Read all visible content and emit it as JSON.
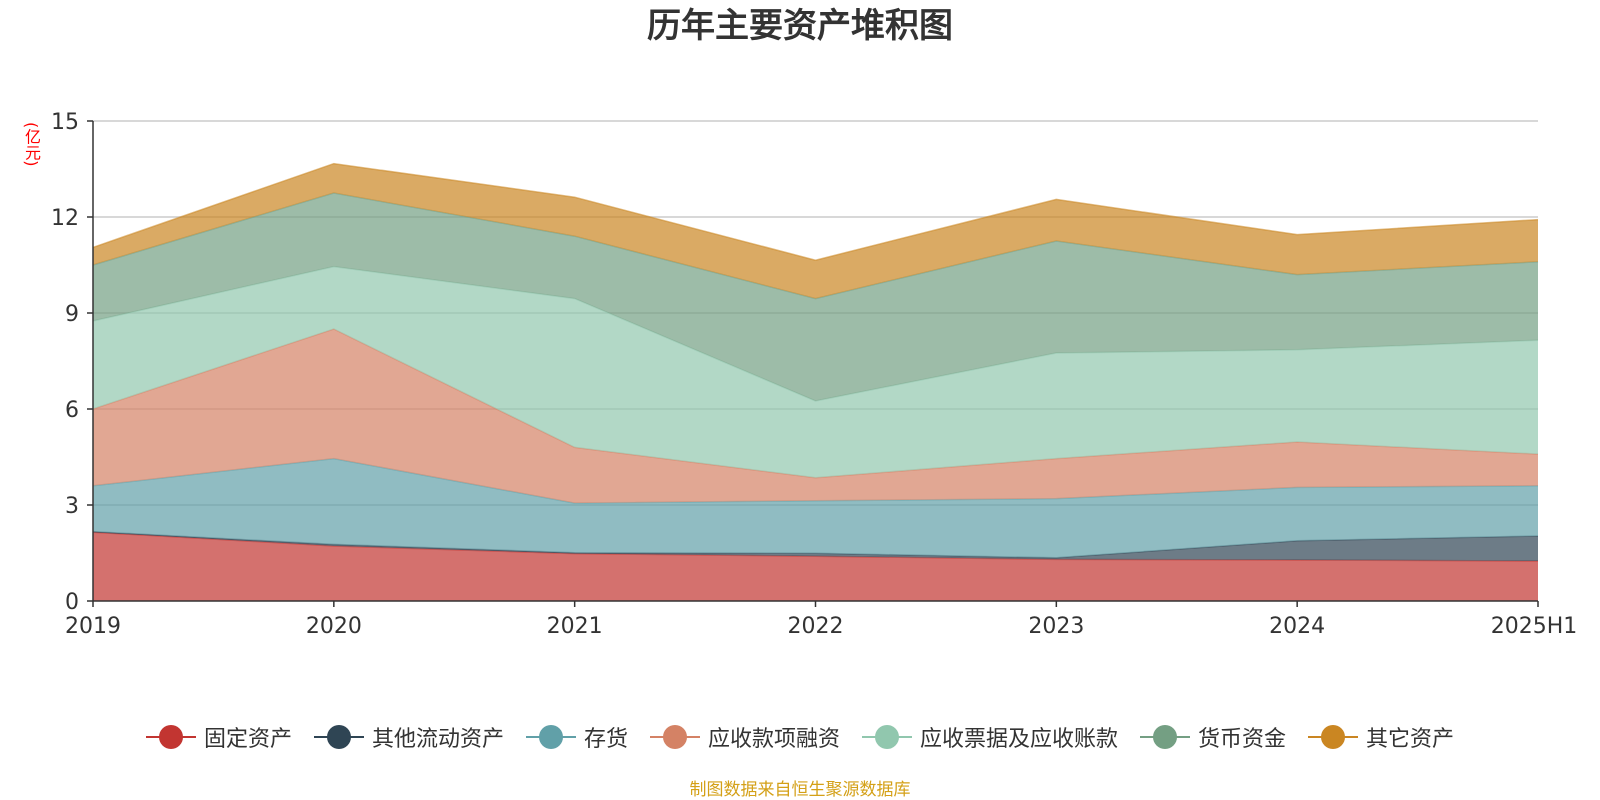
{
  "title": "历年主要资产堆积图",
  "unit_label": "(亿元)",
  "source_note": "制图数据来自恒生聚源数据库",
  "chart_data": {
    "type": "area",
    "stacked": true,
    "title": "历年主要资产堆积图",
    "ylabel": "(亿元)",
    "categories": [
      "2019",
      "2020",
      "2021",
      "2022",
      "2023",
      "2024",
      "2025H1"
    ],
    "ylim": [
      0,
      15
    ],
    "yticks": [
      "0",
      "3",
      "6",
      "9",
      "12",
      "15"
    ],
    "grid": true,
    "legend_position": "bottom",
    "series": [
      {
        "name": "固定资产",
        "color": "#c23531",
        "values": [
          2.15,
          1.72,
          1.48,
          1.4,
          1.3,
          1.28,
          1.25
        ]
      },
      {
        "name": "其他流动资产",
        "color": "#2f4554",
        "values": [
          0.02,
          0.05,
          0.03,
          0.09,
          0.05,
          0.6,
          0.78
        ]
      },
      {
        "name": "存货",
        "color": "#61a0a8",
        "values": [
          1.43,
          2.68,
          1.55,
          1.64,
          1.85,
          1.67,
          1.57
        ]
      },
      {
        "name": "应收款项融资",
        "color": "#d48265",
        "values": [
          2.4,
          4.05,
          1.74,
          0.72,
          1.25,
          1.42,
          0.99
        ]
      },
      {
        "name": "应收票据及应收账款",
        "color": "#91c7ae",
        "values": [
          2.75,
          1.95,
          4.65,
          2.4,
          3.3,
          2.88,
          3.56
        ]
      },
      {
        "name": "货币资金",
        "color": "#749f83",
        "values": [
          1.75,
          2.3,
          1.95,
          3.2,
          3.5,
          2.35,
          2.45
        ]
      },
      {
        "name": "其它资产",
        "color": "#ca8622",
        "values": [
          0.55,
          0.92,
          1.22,
          1.2,
          1.3,
          1.25,
          1.32
        ]
      }
    ]
  }
}
